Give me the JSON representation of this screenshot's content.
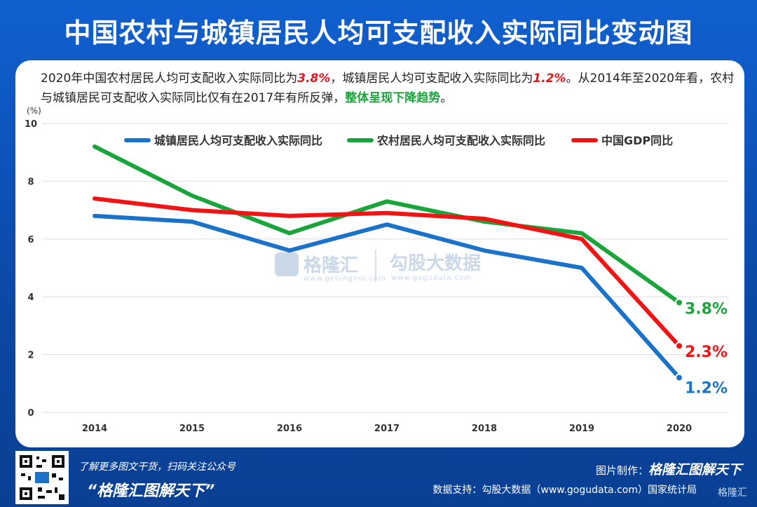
{
  "title": "中国农村与城镇居民人均可支配收入实际同比变动图",
  "summary": {
    "part1": "2020年中国农村居民人均可支配收入实际同比为",
    "rural_value": "3.8%",
    "part2": "，城镇居民人均可支配收入实际同比为",
    "urban_value": "1.2%",
    "part3": "。从2014年至2020年看，农村与城镇居民可支配收入实际同比仅有在2017年有所反弹，",
    "conclusion": "整体呈现下降趋势",
    "part4": "。"
  },
  "chart_data": {
    "type": "line",
    "unit_label": "(%)",
    "x": [
      "2014",
      "2015",
      "2016",
      "2017",
      "2018",
      "2019",
      "2020"
    ],
    "ylim": [
      0,
      10
    ],
    "yticks": [
      "0",
      "2",
      "4",
      "6",
      "8",
      "10"
    ],
    "grid": true,
    "legend_position": "top",
    "series": [
      {
        "name": "城镇居民人均可支配收入实际同比",
        "color": "#1a73c8",
        "values": [
          6.8,
          6.6,
          5.6,
          6.5,
          5.6,
          5.0,
          1.2
        ],
        "end_label": "1.2%"
      },
      {
        "name": "农村居民人均可支配收入实际同比",
        "color": "#1aa53c",
        "values": [
          9.2,
          7.5,
          6.2,
          7.3,
          6.6,
          6.2,
          3.8
        ],
        "end_label": "3.8%"
      },
      {
        "name": "中国GDP同比",
        "color": "#f01414",
        "values": [
          7.4,
          7.0,
          6.8,
          6.9,
          6.7,
          6.0,
          2.3
        ],
        "end_label": "2.3%"
      }
    ]
  },
  "watermark": {
    "brand1": "格隆汇",
    "brand1_url": "www.gelonghui.com",
    "brand2": "勾股大数据",
    "brand2_url": "www.gogudata.com"
  },
  "footer": {
    "promo_line1": "了解更多图文干货，扫码关注公众号",
    "promo_line2": "“格隆汇图解天下”",
    "credit_label": "图片制作：",
    "credit_brand": "格隆汇图解天下",
    "source": "数据支持：勾股大数据（www.gogudata.com）国家统计局",
    "corner_logo": "格隆汇"
  },
  "colors": {
    "background": "#0c4db5",
    "urban": "#1a73c8",
    "rural": "#1aa53c",
    "gdp": "#f01414"
  }
}
